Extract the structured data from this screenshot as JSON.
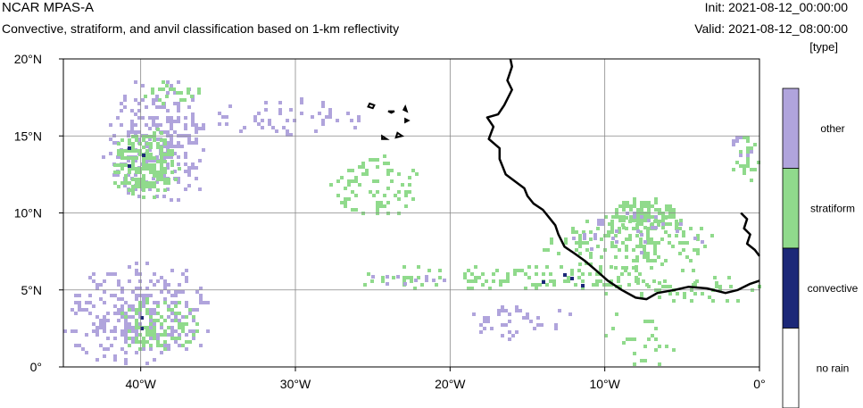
{
  "header": {
    "model": "NCAR MPAS-A",
    "description": "Convective, stratiform, and anvil classification based on 1-km reflectivity",
    "init": "Init: 2021-08-12_00:00:00",
    "valid": "Valid: 2021-08-12_08:00:00",
    "units": "[type]"
  },
  "map": {
    "lon_range": [
      -45,
      0
    ],
    "lat_range": [
      0,
      20
    ],
    "lon_ticks": [
      -40,
      -30,
      -20,
      -10,
      0
    ],
    "lat_ticks": [
      0,
      5,
      10,
      15,
      20
    ],
    "lon_tick_labels": [
      "40°W",
      "30°W",
      "20°W",
      "10°W",
      "0°"
    ],
    "lat_tick_labels": [
      "0°",
      "5°N",
      "10°N",
      "15°N",
      "20°N"
    ],
    "grid": true
  },
  "legend": {
    "categories": [
      {
        "label": "other",
        "color": "#b0a4dc"
      },
      {
        "label": "stratiform",
        "color": "#90da8c"
      },
      {
        "label": "convective",
        "color": "#1c2878"
      },
      {
        "label": "no rain",
        "color": "#ffffff"
      }
    ]
  },
  "colors": {
    "other": "#b0a4dc",
    "stratiform": "#90da8c",
    "convective": "#1c2878",
    "coastline": "#000000",
    "grid": "#888888"
  },
  "coastline": [
    [
      -16.1,
      20.0
    ],
    [
      -16.0,
      19.5
    ],
    [
      -16.3,
      18.6
    ],
    [
      -16.0,
      18.0
    ],
    [
      -16.5,
      17.0
    ],
    [
      -16.9,
      16.4
    ],
    [
      -17.6,
      16.2
    ],
    [
      -17.2,
      15.6
    ],
    [
      -17.5,
      14.8
    ],
    [
      -16.8,
      14.2
    ],
    [
      -16.8,
      13.5
    ],
    [
      -16.6,
      13.0
    ],
    [
      -16.4,
      12.5
    ],
    [
      -15.6,
      11.9
    ],
    [
      -15.2,
      11.6
    ],
    [
      -15.0,
      11.1
    ],
    [
      -14.6,
      10.6
    ],
    [
      -14.0,
      10.2
    ],
    [
      -13.6,
      9.7
    ],
    [
      -13.2,
      9.2
    ],
    [
      -13.0,
      8.6
    ],
    [
      -12.6,
      7.8
    ],
    [
      -12.0,
      7.4
    ],
    [
      -11.3,
      6.9
    ],
    [
      -10.6,
      6.3
    ],
    [
      -9.8,
      5.6
    ],
    [
      -8.9,
      5.0
    ],
    [
      -8.0,
      4.5
    ],
    [
      -7.3,
      4.4
    ],
    [
      -6.6,
      4.8
    ],
    [
      -5.5,
      5.0
    ],
    [
      -4.6,
      5.2
    ],
    [
      -3.4,
      5.1
    ],
    [
      -2.2,
      4.8
    ],
    [
      -1.4,
      5.0
    ],
    [
      -0.6,
      5.4
    ],
    [
      0.0,
      5.6
    ]
  ],
  "islands": [
    [
      [
        -25.2,
        17.1
      ],
      [
        -24.9,
        17.0
      ],
      [
        -25.0,
        16.8
      ],
      [
        -25.3,
        16.9
      ]
    ],
    [
      [
        -24.0,
        16.6
      ],
      [
        -23.6,
        16.6
      ],
      [
        -23.8,
        16.5
      ]
    ],
    [
      [
        -22.9,
        16.9
      ],
      [
        -22.8,
        16.6
      ],
      [
        -23.0,
        16.7
      ]
    ],
    [
      [
        -22.9,
        16.1
      ],
      [
        -22.7,
        16.0
      ],
      [
        -22.9,
        15.9
      ]
    ],
    [
      [
        -24.4,
        15.0
      ],
      [
        -24.1,
        14.8
      ],
      [
        -24.4,
        14.8
      ]
    ],
    [
      [
        -23.4,
        15.2
      ],
      [
        -23.1,
        15.0
      ],
      [
        -23.5,
        14.9
      ]
    ]
  ],
  "east_coast": [
    [
      -1.2,
      10.0
    ],
    [
      -0.8,
      9.6
    ],
    [
      -1.0,
      9.0
    ],
    [
      -0.6,
      8.6
    ],
    [
      -0.8,
      8.0
    ],
    [
      -0.3,
      7.6
    ],
    [
      0.0,
      7.2
    ]
  ],
  "precip_regions": [
    {
      "cls": "other",
      "lon": [
        -42.5,
        -35.5
      ],
      "lat": [
        10.8,
        18.6
      ],
      "density": 0.35,
      "seed": 11
    },
    {
      "cls": "stratiform",
      "lon": [
        -42.0,
        -37.5
      ],
      "lat": [
        11.0,
        15.5
      ],
      "density": 0.6,
      "seed": 12
    },
    {
      "cls": "stratiform",
      "lon": [
        -40.0,
        -36.0
      ],
      "lat": [
        17.2,
        18.6
      ],
      "density": 0.4,
      "seed": 13
    },
    {
      "cls": "convective",
      "lon": [
        -41.5,
        -39.0
      ],
      "lat": [
        11.3,
        14.5
      ],
      "density": 0.05,
      "seed": 14
    },
    {
      "cls": "other",
      "lon": [
        -35.0,
        -25.0
      ],
      "lat": [
        15.0,
        17.5
      ],
      "density": 0.15,
      "seed": 15
    },
    {
      "cls": "stratiform",
      "lon": [
        -28.0,
        -21.5
      ],
      "lat": [
        9.5,
        14.0
      ],
      "density": 0.22,
      "seed": 16
    },
    {
      "cls": "other",
      "lon": [
        -45.0,
        -35.5
      ],
      "lat": [
        0.2,
        6.8
      ],
      "density": 0.3,
      "seed": 17
    },
    {
      "cls": "stratiform",
      "lon": [
        -41.5,
        -36.0
      ],
      "lat": [
        1.0,
        4.5
      ],
      "density": 0.45,
      "seed": 18
    },
    {
      "cls": "convective",
      "lon": [
        -40.5,
        -37.0
      ],
      "lat": [
        1.5,
        3.5
      ],
      "density": 0.03,
      "seed": 19
    },
    {
      "cls": "stratiform",
      "lon": [
        -27.0,
        -2.0
      ],
      "lat": [
        5.0,
        6.8
      ],
      "density": 0.22,
      "seed": 20
    },
    {
      "cls": "other",
      "lon": [
        -19.0,
        -12.0
      ],
      "lat": [
        1.6,
        4.2
      ],
      "density": 0.2,
      "seed": 21
    },
    {
      "cls": "stratiform",
      "lon": [
        -10.0,
        -5.0
      ],
      "lat": [
        9.0,
        11.0
      ],
      "density": 0.7,
      "seed": 22
    },
    {
      "cls": "stratiform",
      "lon": [
        -14.0,
        -3.0
      ],
      "lat": [
        6.5,
        10.0
      ],
      "density": 0.3,
      "seed": 23
    },
    {
      "cls": "other",
      "lon": [
        -13.0,
        -3.0
      ],
      "lat": [
        7.5,
        10.5
      ],
      "density": 0.12,
      "seed": 24
    },
    {
      "cls": "convective",
      "lon": [
        -18.0,
        -7.0
      ],
      "lat": [
        5.3,
        6.3
      ],
      "density": 0.04,
      "seed": 25
    },
    {
      "cls": "stratiform",
      "lon": [
        -2.0,
        0.0
      ],
      "lat": [
        12.0,
        15.0
      ],
      "density": 0.35,
      "seed": 26
    },
    {
      "cls": "other",
      "lon": [
        -2.0,
        0.0
      ],
      "lat": [
        13.5,
        15.2
      ],
      "density": 0.3,
      "seed": 27
    },
    {
      "cls": "stratiform",
      "lon": [
        -10.5,
        0.0
      ],
      "lat": [
        4.0,
        6.0
      ],
      "density": 0.15,
      "seed": 28
    },
    {
      "cls": "stratiform",
      "lon": [
        -10.0,
        -5.0
      ],
      "lat": [
        0.0,
        4.0
      ],
      "density": 0.1,
      "seed": 29
    },
    {
      "cls": "other",
      "lon": [
        -26.0,
        -20.0
      ],
      "lat": [
        5.2,
        6.2
      ],
      "density": 0.15,
      "seed": 30
    }
  ]
}
